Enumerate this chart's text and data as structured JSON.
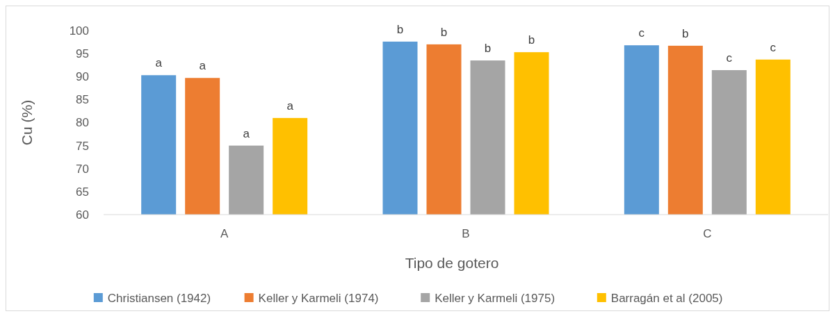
{
  "chart_data": {
    "type": "bar",
    "xlabel": "Tipo de gotero",
    "ylabel": "Cu (%)",
    "categories": [
      "A",
      "B",
      "C"
    ],
    "ylim": [
      60,
      100
    ],
    "yticks": [
      60,
      65,
      70,
      75,
      80,
      85,
      90,
      95,
      100
    ],
    "grid": false,
    "legend": "bottom",
    "series": [
      {
        "name": "Christiansen (1942)",
        "color": "#5b9bd5",
        "values": [
          90.3,
          97.6,
          96.8
        ],
        "value_labels": [
          "a",
          "b",
          "c"
        ]
      },
      {
        "name": "Keller y Karmeli (1974)",
        "color": "#ed7d31",
        "values": [
          89.7,
          97.0,
          96.7
        ],
        "value_labels": [
          "a",
          "b",
          "b"
        ]
      },
      {
        "name": "Keller y Karmeli (1975)",
        "color": "#a5a5a5",
        "values": [
          75.0,
          93.5,
          91.4
        ],
        "value_labels": [
          "a",
          "b",
          "c"
        ]
      },
      {
        "name": "Barragán  et al (2005)",
        "color": "#ffc000",
        "values": [
          81.0,
          95.3,
          93.7
        ],
        "value_labels": [
          "a",
          "b",
          "c"
        ]
      }
    ]
  }
}
